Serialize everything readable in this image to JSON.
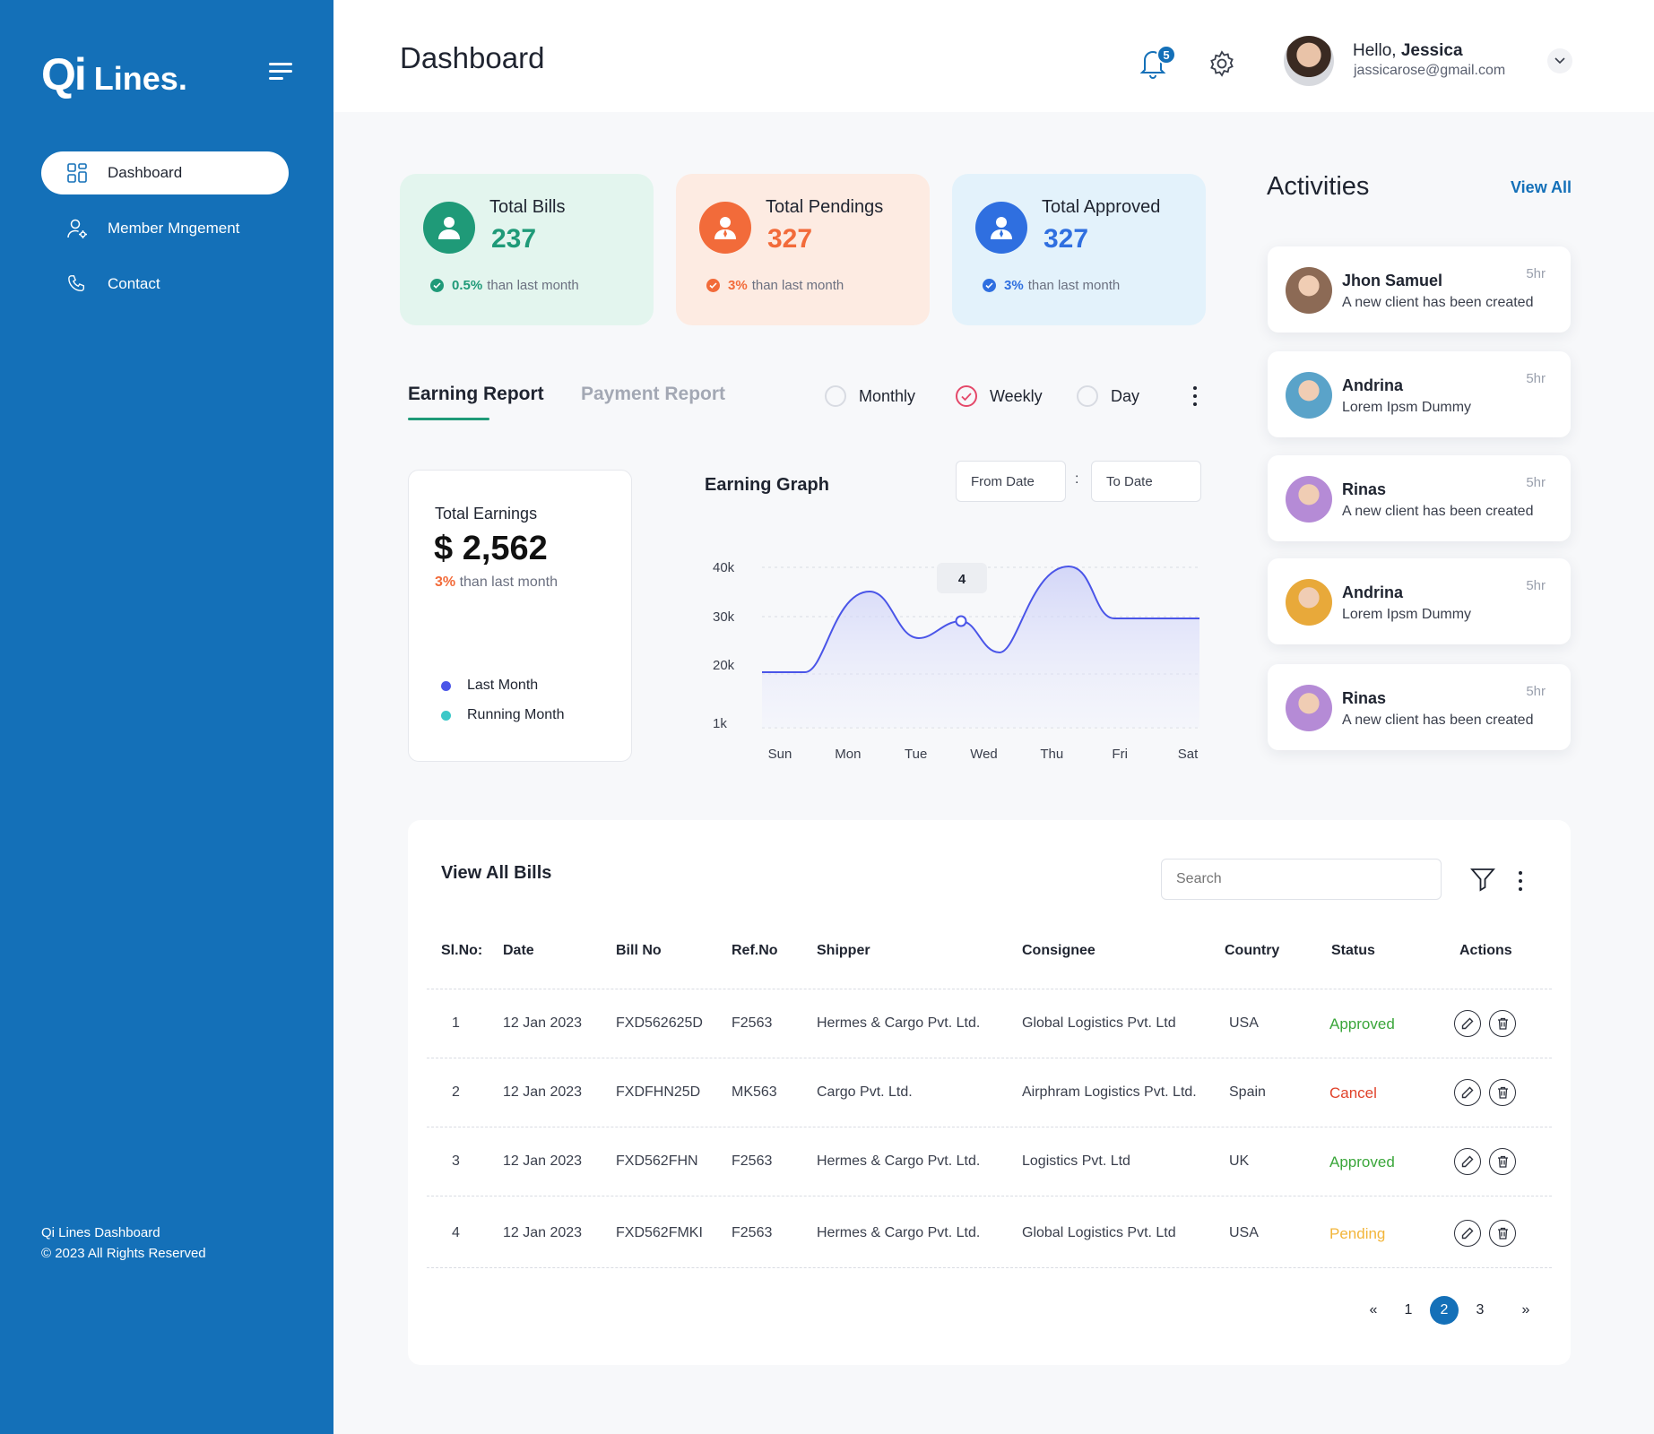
{
  "sidebar": {
    "logo_qi": "Qi",
    "logo_lines": "Lines.",
    "items": [
      {
        "label": "Dashboard",
        "icon": "grid-icon",
        "active": true
      },
      {
        "label": "Member Mngement",
        "icon": "user-gear-icon",
        "active": false
      },
      {
        "label": "Contact",
        "icon": "phone-icon",
        "active": false
      }
    ],
    "footer_line1": "Qi Lines Dashboard",
    "footer_line2": "© 2023 All Rights Reserved"
  },
  "header": {
    "title": "Dashboard",
    "notification_count": "5",
    "greeting": "Hello, ",
    "user_name": "Jessica",
    "email": "jassicarose@gmail.com"
  },
  "stats": [
    {
      "label": "Total Bills",
      "value": "237",
      "pct": "0.5%",
      "note": "than last month",
      "color": "#1f9a78",
      "bg": "#e3f5ee"
    },
    {
      "label": "Total Pendings",
      "value": "327",
      "pct": "3%",
      "note": "than last month",
      "color": "#f26b3a",
      "bg": "#fdebe2"
    },
    {
      "label": "Total Approved",
      "value": "327",
      "pct": "3%",
      "note": "than last month",
      "color": "#2f6fe0",
      "bg": "#e3f2fb"
    }
  ],
  "report": {
    "tab_active": "Earning Report",
    "tab_inactive": "Payment Report",
    "radio_monthly": "Monthly",
    "radio_weekly": "Weekly",
    "radio_day": "Day",
    "selected": "Weekly"
  },
  "earnings": {
    "title": "Total Earnings",
    "value": "$ 2,562",
    "pct": "3%",
    "note": "than last month",
    "legend_last": "Last Month",
    "legend_running": "Running Month",
    "legend_last_color": "#4a55e8",
    "legend_running_color": "#3cc8c8"
  },
  "graph": {
    "title": "Earning Graph",
    "from_date": "From Date",
    "to_date": "To Date",
    "date_sep": ":"
  },
  "chart_data": {
    "type": "area",
    "x": [
      "Sun",
      "Mon",
      "Tue",
      "Wed",
      "Thu",
      "Fri",
      "Sat"
    ],
    "y_ticks": [
      "40k",
      "30k",
      "20k",
      "1k"
    ],
    "tooltip_label": "4",
    "tooltip_index": 3
  },
  "activities": {
    "title": "Activities",
    "view_all": "View All",
    "items": [
      {
        "name": "Jhon Samuel",
        "desc": "A new client has been created",
        "time": "5hr",
        "avatar_color": "#8c6a55"
      },
      {
        "name": "Andrina",
        "desc": "Lorem Ipsm Dummy",
        "time": "5hr",
        "avatar_color": "#5aa3c9"
      },
      {
        "name": "Rinas",
        "desc": "A new client has been created",
        "time": "5hr",
        "avatar_color": "#b58bd6"
      },
      {
        "name": "Andrina",
        "desc": "Lorem Ipsm Dummy",
        "time": "5hr",
        "avatar_color": "#e8a93a"
      },
      {
        "name": "Rinas",
        "desc": "A new client has been created",
        "time": "5hr",
        "avatar_color": "#b58bd6"
      }
    ]
  },
  "bills": {
    "title": "View All Bills",
    "search_placeholder": "Search",
    "columns": [
      "Sl.No:",
      "Date",
      "Bill No",
      "Ref.No",
      "Shipper",
      "Consignee",
      "Country",
      "Status",
      "Actions"
    ],
    "rows": [
      {
        "sl": "1",
        "date": "12 Jan 2023",
        "bill": "FXD562625D",
        "ref": "F2563",
        "shipper": "Hermes & Cargo Pvt. Ltd.",
        "consignee": "Global Logistics Pvt. Ltd",
        "country": "USA",
        "status": "Approved",
        "status_color": "#3aa63a"
      },
      {
        "sl": "2",
        "date": "12 Jan 2023",
        "bill": "FXDFHN25D",
        "ref": "MK563",
        "shipper": "Cargo Pvt. Ltd.",
        "consignee": "Airphram Logistics Pvt. Ltd.",
        "country": "Spain",
        "status": "Cancel",
        "status_color": "#e0422a"
      },
      {
        "sl": "3",
        "date": "12 Jan 2023",
        "bill": "FXD562FHN",
        "ref": "F2563",
        "shipper": "Hermes & Cargo Pvt. Ltd.",
        "consignee": "Logistics Pvt. Ltd",
        "country": "UK",
        "status": "Approved",
        "status_color": "#3aa63a"
      },
      {
        "sl": "4",
        "date": "12 Jan 2023",
        "bill": "FXD562FMKI",
        "ref": "F2563",
        "shipper": "Hermes & Cargo Pvt. Ltd.",
        "consignee": "Global Logistics Pvt. Ltd",
        "country": "USA",
        "status": "Pending",
        "status_color": "#f2b53a"
      }
    ],
    "pagination": {
      "prev": "«",
      "pages": [
        "1",
        "2",
        "3"
      ],
      "current": "2",
      "next": "»"
    }
  },
  "colors": {
    "primary": "#1470b8",
    "chart_line": "#4a55e8"
  }
}
